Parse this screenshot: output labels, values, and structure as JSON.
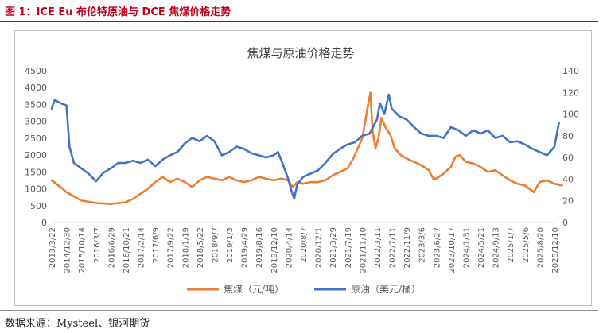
{
  "figure_title": "图 1：ICE Eu 布伦特原油与 DCE 焦煤价格走势",
  "source": "数据来源：Mysteel、银河期货",
  "colors": {
    "title": "#c0001d",
    "coke": "#ed7d31",
    "oil": "#4472c4",
    "axis_text": "#595959"
  },
  "chart_data": {
    "type": "line",
    "title": "焦煤与原油价格走势",
    "legend_position": "bottom",
    "x_tick_labels": [
      "2013/3/22",
      "2014/12/30",
      "2015/10/14",
      "2016/3/7",
      "2016/6/29",
      "2016/10/21",
      "2017/2/14",
      "2017/6/9",
      "2017/9/22",
      "2018/1/19",
      "2018/5/22",
      "2018/9/7",
      "2019/1/3",
      "2019/4/29",
      "2019/8/16",
      "2019/12/10",
      "2020/4/14",
      "2020/8/7",
      "2020/12/1",
      "2021/3/29",
      "2021/7/19",
      "2021/11/10",
      "2022/3/11",
      "2022/7/11",
      "2022/11/9",
      "2023/3/6",
      "2023/6/27",
      "2023/10/17",
      "2024/1/31",
      "2024/5/21",
      "2024/9/13",
      "2025/1/7",
      "2025/5/6",
      "2025/8/20",
      "2025/12/10"
    ],
    "y_left": {
      "min": 0,
      "max": 4500,
      "ticks": [
        "0",
        "500",
        "1000",
        "1500",
        "2000",
        "2500",
        "3000",
        "3500",
        "4000",
        "4500"
      ]
    },
    "y_right": {
      "min": 0,
      "max": 140,
      "ticks": [
        "0",
        "20",
        "40",
        "60",
        "80",
        "100",
        "120",
        "140"
      ]
    },
    "series": [
      {
        "name": "焦煤（元/吨）",
        "axis": "left",
        "color": "#ed7d31",
        "points": [
          [
            0,
            1250
          ],
          [
            0.3,
            1150
          ],
          [
            0.6,
            1050
          ],
          [
            1,
            900
          ],
          [
            2,
            650
          ],
          [
            3,
            580
          ],
          [
            4,
            550
          ],
          [
            5,
            600
          ],
          [
            5.5,
            700
          ],
          [
            6,
            850
          ],
          [
            6.5,
            1000
          ],
          [
            7,
            1200
          ],
          [
            7.5,
            1350
          ],
          [
            8,
            1200
          ],
          [
            8.5,
            1300
          ],
          [
            9,
            1200
          ],
          [
            9.5,
            1050
          ],
          [
            10,
            1250
          ],
          [
            10.5,
            1350
          ],
          [
            11,
            1300
          ],
          [
            11.5,
            1250
          ],
          [
            12,
            1350
          ],
          [
            12.5,
            1250
          ],
          [
            13,
            1200
          ],
          [
            13.5,
            1250
          ],
          [
            14,
            1350
          ],
          [
            14.5,
            1300
          ],
          [
            15,
            1250
          ],
          [
            15.5,
            1300
          ],
          [
            16,
            1250
          ],
          [
            16.3,
            1050
          ],
          [
            16.6,
            1200
          ],
          [
            17,
            1150
          ],
          [
            17.5,
            1200
          ],
          [
            18,
            1200
          ],
          [
            18.5,
            1250
          ],
          [
            19,
            1400
          ],
          [
            19.5,
            1500
          ],
          [
            20,
            1600
          ],
          [
            20.4,
            1900
          ],
          [
            20.7,
            2200
          ],
          [
            21,
            2500
          ],
          [
            21.2,
            3000
          ],
          [
            21.4,
            3500
          ],
          [
            21.55,
            3850
          ],
          [
            21.7,
            2700
          ],
          [
            21.9,
            2200
          ],
          [
            22.1,
            2500
          ],
          [
            22.3,
            3100
          ],
          [
            22.6,
            2800
          ],
          [
            22.9,
            2600
          ],
          [
            23.2,
            2200
          ],
          [
            23.6,
            2000
          ],
          [
            24,
            1900
          ],
          [
            24.5,
            1800
          ],
          [
            25,
            1700
          ],
          [
            25.5,
            1550
          ],
          [
            25.8,
            1300
          ],
          [
            26,
            1300
          ],
          [
            26.5,
            1450
          ],
          [
            27,
            1650
          ],
          [
            27.3,
            1950
          ],
          [
            27.6,
            2000
          ],
          [
            28,
            1800
          ],
          [
            28.5,
            1750
          ],
          [
            29,
            1650
          ],
          [
            29.5,
            1500
          ],
          [
            30,
            1550
          ],
          [
            30.5,
            1400
          ],
          [
            31,
            1250
          ],
          [
            31.5,
            1150
          ],
          [
            32,
            1100
          ],
          [
            32.6,
            900
          ],
          [
            33,
            1200
          ],
          [
            33.5,
            1250
          ],
          [
            34,
            1150
          ],
          [
            34.5,
            1100
          ]
        ]
      },
      {
        "name": "原油（美元/桶）",
        "axis": "right",
        "color": "#4472c4",
        "points": [
          [
            0,
            105
          ],
          [
            0.2,
            113
          ],
          [
            0.6,
            110
          ],
          [
            1,
            108
          ],
          [
            1.2,
            70
          ],
          [
            1.5,
            55
          ],
          [
            2,
            50
          ],
          [
            2.5,
            45
          ],
          [
            3,
            38
          ],
          [
            3.5,
            46
          ],
          [
            4,
            50
          ],
          [
            4.5,
            55
          ],
          [
            5,
            55
          ],
          [
            5.5,
            57
          ],
          [
            6,
            55
          ],
          [
            6.5,
            58
          ],
          [
            7,
            52
          ],
          [
            7.5,
            58
          ],
          [
            8,
            62
          ],
          [
            8.5,
            65
          ],
          [
            9,
            73
          ],
          [
            9.5,
            78
          ],
          [
            10,
            75
          ],
          [
            10.5,
            80
          ],
          [
            11,
            75
          ],
          [
            11.5,
            62
          ],
          [
            12,
            65
          ],
          [
            12.5,
            70
          ],
          [
            13,
            68
          ],
          [
            13.5,
            64
          ],
          [
            14,
            62
          ],
          [
            14.5,
            60
          ],
          [
            15,
            62
          ],
          [
            15.3,
            65
          ],
          [
            15.6,
            55
          ],
          [
            16,
            40
          ],
          [
            16.2,
            30
          ],
          [
            16.4,
            22
          ],
          [
            16.6,
            35
          ],
          [
            17,
            42
          ],
          [
            17.5,
            45
          ],
          [
            18,
            48
          ],
          [
            18.5,
            55
          ],
          [
            19,
            63
          ],
          [
            19.5,
            68
          ],
          [
            20,
            72
          ],
          [
            20.5,
            74
          ],
          [
            21,
            80
          ],
          [
            21.5,
            82
          ],
          [
            22,
            95
          ],
          [
            22.2,
            110
          ],
          [
            22.5,
            100
          ],
          [
            22.8,
            118
          ],
          [
            23,
            105
          ],
          [
            23.5,
            98
          ],
          [
            24,
            95
          ],
          [
            24.5,
            88
          ],
          [
            25,
            82
          ],
          [
            25.5,
            80
          ],
          [
            26,
            80
          ],
          [
            26.5,
            78
          ],
          [
            27,
            88
          ],
          [
            27.5,
            85
          ],
          [
            28,
            80
          ],
          [
            28.5,
            85
          ],
          [
            29,
            82
          ],
          [
            29.5,
            85
          ],
          [
            30,
            78
          ],
          [
            30.5,
            80
          ],
          [
            31,
            74
          ],
          [
            31.5,
            75
          ],
          [
            32,
            72
          ],
          [
            32.5,
            68
          ],
          [
            33,
            65
          ],
          [
            33.5,
            62
          ],
          [
            34,
            70
          ],
          [
            34.3,
            92
          ]
        ]
      }
    ]
  }
}
